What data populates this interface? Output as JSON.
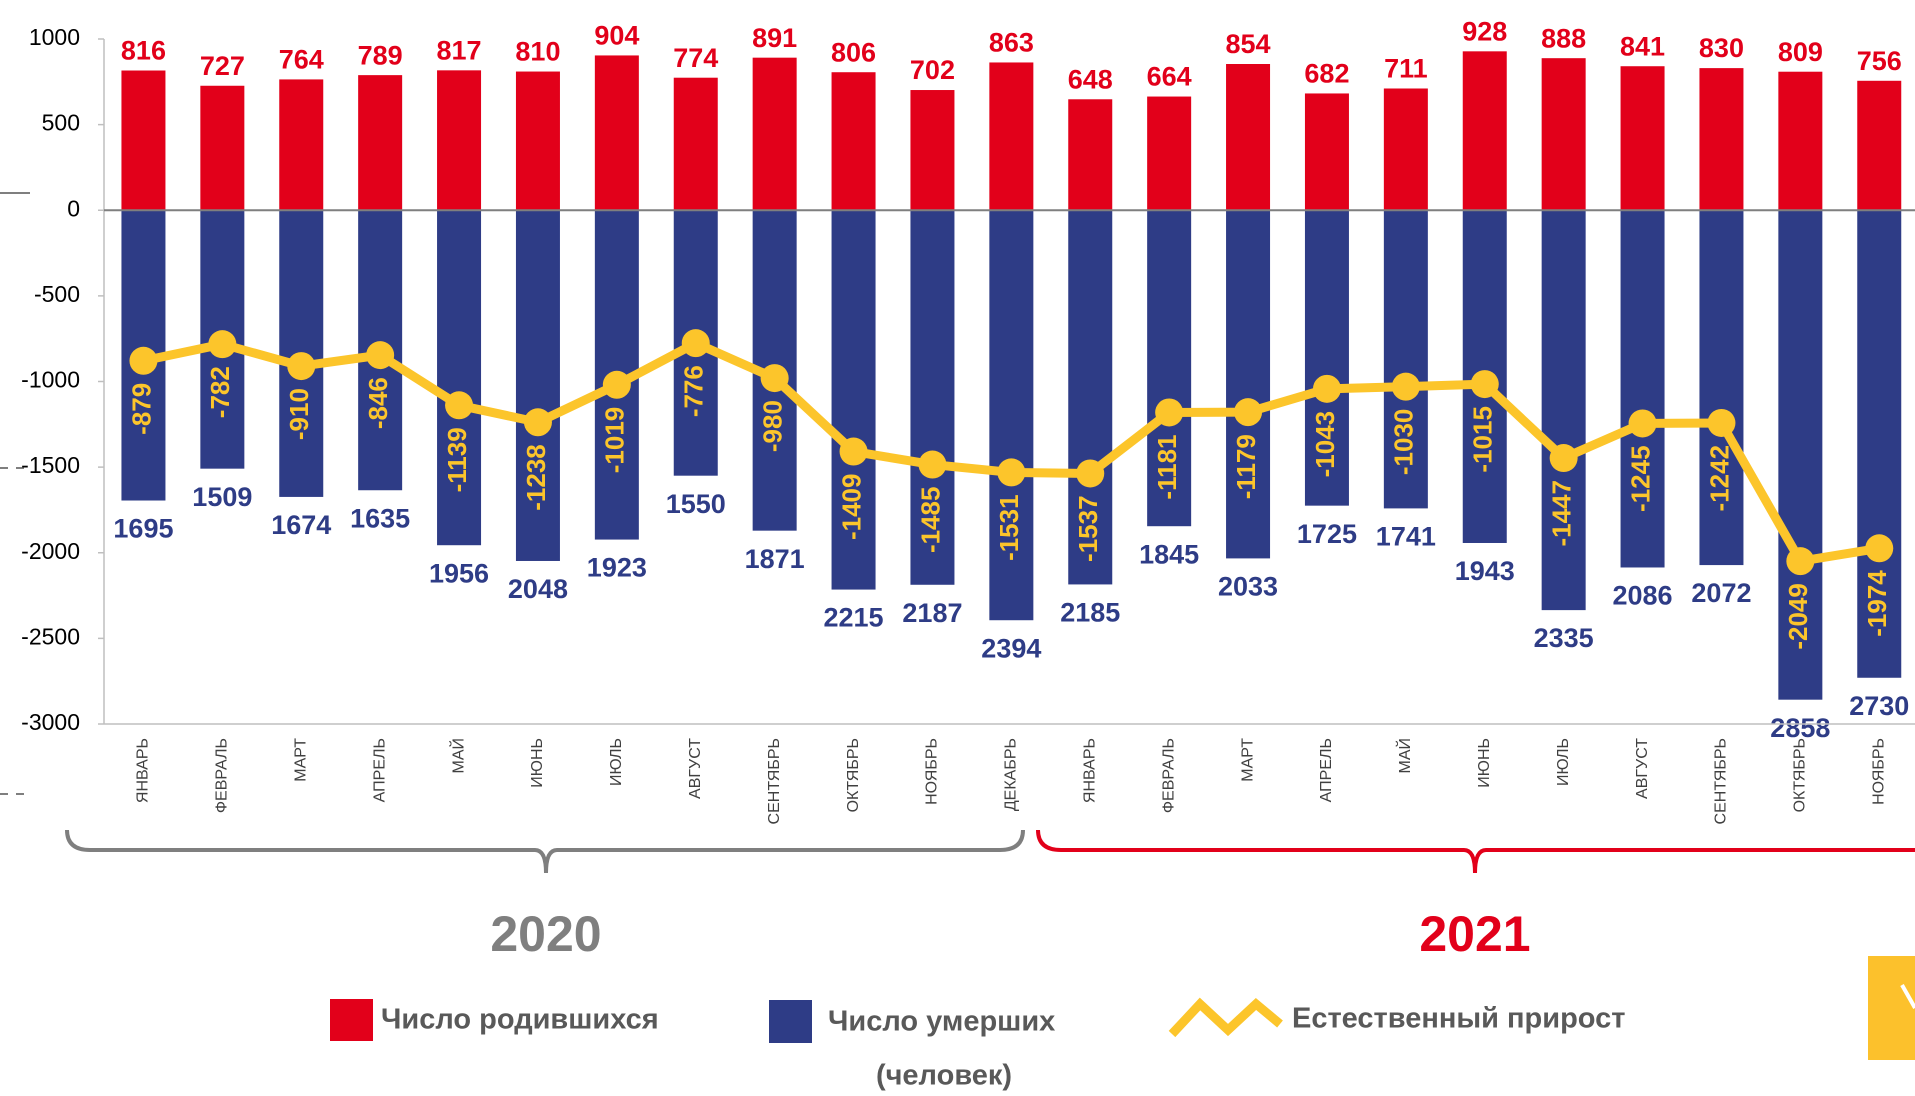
{
  "chart_data": {
    "type": "bar",
    "categories": [
      "ЯНВАРЬ",
      "ФЕВРАЛЬ",
      "МАРТ",
      "АПРЕЛЬ",
      "МАЙ",
      "ИЮНЬ",
      "ИЮЛЬ",
      "АВГУСТ",
      "СЕНТЯБРЬ",
      "ОКТЯБРЬ",
      "НОЯБРЬ",
      "ДЕКАБРЬ",
      "ЯНВАРЬ",
      "ФЕВРАЛЬ",
      "МАРТ",
      "АПРЕЛЬ",
      "МАЙ",
      "ИЮНЬ",
      "ИЮЛЬ",
      "АВГУСТ",
      "СЕНТЯБРЬ",
      "ОКТЯБРЬ",
      "НОЯБРЬ"
    ],
    "groups": [
      {
        "label": "2020",
        "color": "#7f7f7f"
      },
      {
        "label": "2021",
        "color": "#e2001a"
      }
    ],
    "series": [
      {
        "name": "Число родившихся",
        "color": "#e2001a",
        "type": "bar",
        "values": [
          816,
          727,
          764,
          789,
          817,
          810,
          904,
          774,
          891,
          806,
          702,
          863,
          648,
          664,
          854,
          682,
          711,
          928,
          888,
          841,
          830,
          809,
          756
        ]
      },
      {
        "name": "Число умерших",
        "color": "#2e3c86",
        "type": "bar",
        "values": [
          -1695,
          -1509,
          -1674,
          -1635,
          -1956,
          -2048,
          -1923,
          -1550,
          -1871,
          -2215,
          -2187,
          -2394,
          -2185,
          -1845,
          -2033,
          -1725,
          -1741,
          -1943,
          -2335,
          -2086,
          -2072,
          -2858,
          -2730
        ],
        "value_labels": [
          "1695",
          "1509",
          "1674",
          "1635",
          "1956",
          "2048",
          "1923",
          "1550",
          "1871",
          "2215",
          "2187",
          "2394",
          "2185",
          "1845",
          "2033",
          "1725",
          "1741",
          "1943",
          "2335",
          "2086",
          "2072",
          "2858",
          "2730"
        ]
      },
      {
        "name": "Естественный прирост",
        "color": "#fcc52b",
        "type": "line",
        "values": [
          -879,
          -782,
          -910,
          -846,
          -1139,
          -1238,
          -1019,
          -776,
          -980,
          -1409,
          -1485,
          -1531,
          -1537,
          -1181,
          -1179,
          -1043,
          -1030,
          -1015,
          -1447,
          -1245,
          -1242,
          -2049,
          -1974
        ]
      }
    ],
    "note": "(человек)",
    "ylim": [
      -3000,
      1000
    ],
    "yticks": [
      -3000,
      -2500,
      -2000,
      -1500,
      -1000,
      -500,
      0,
      500,
      1000
    ]
  }
}
